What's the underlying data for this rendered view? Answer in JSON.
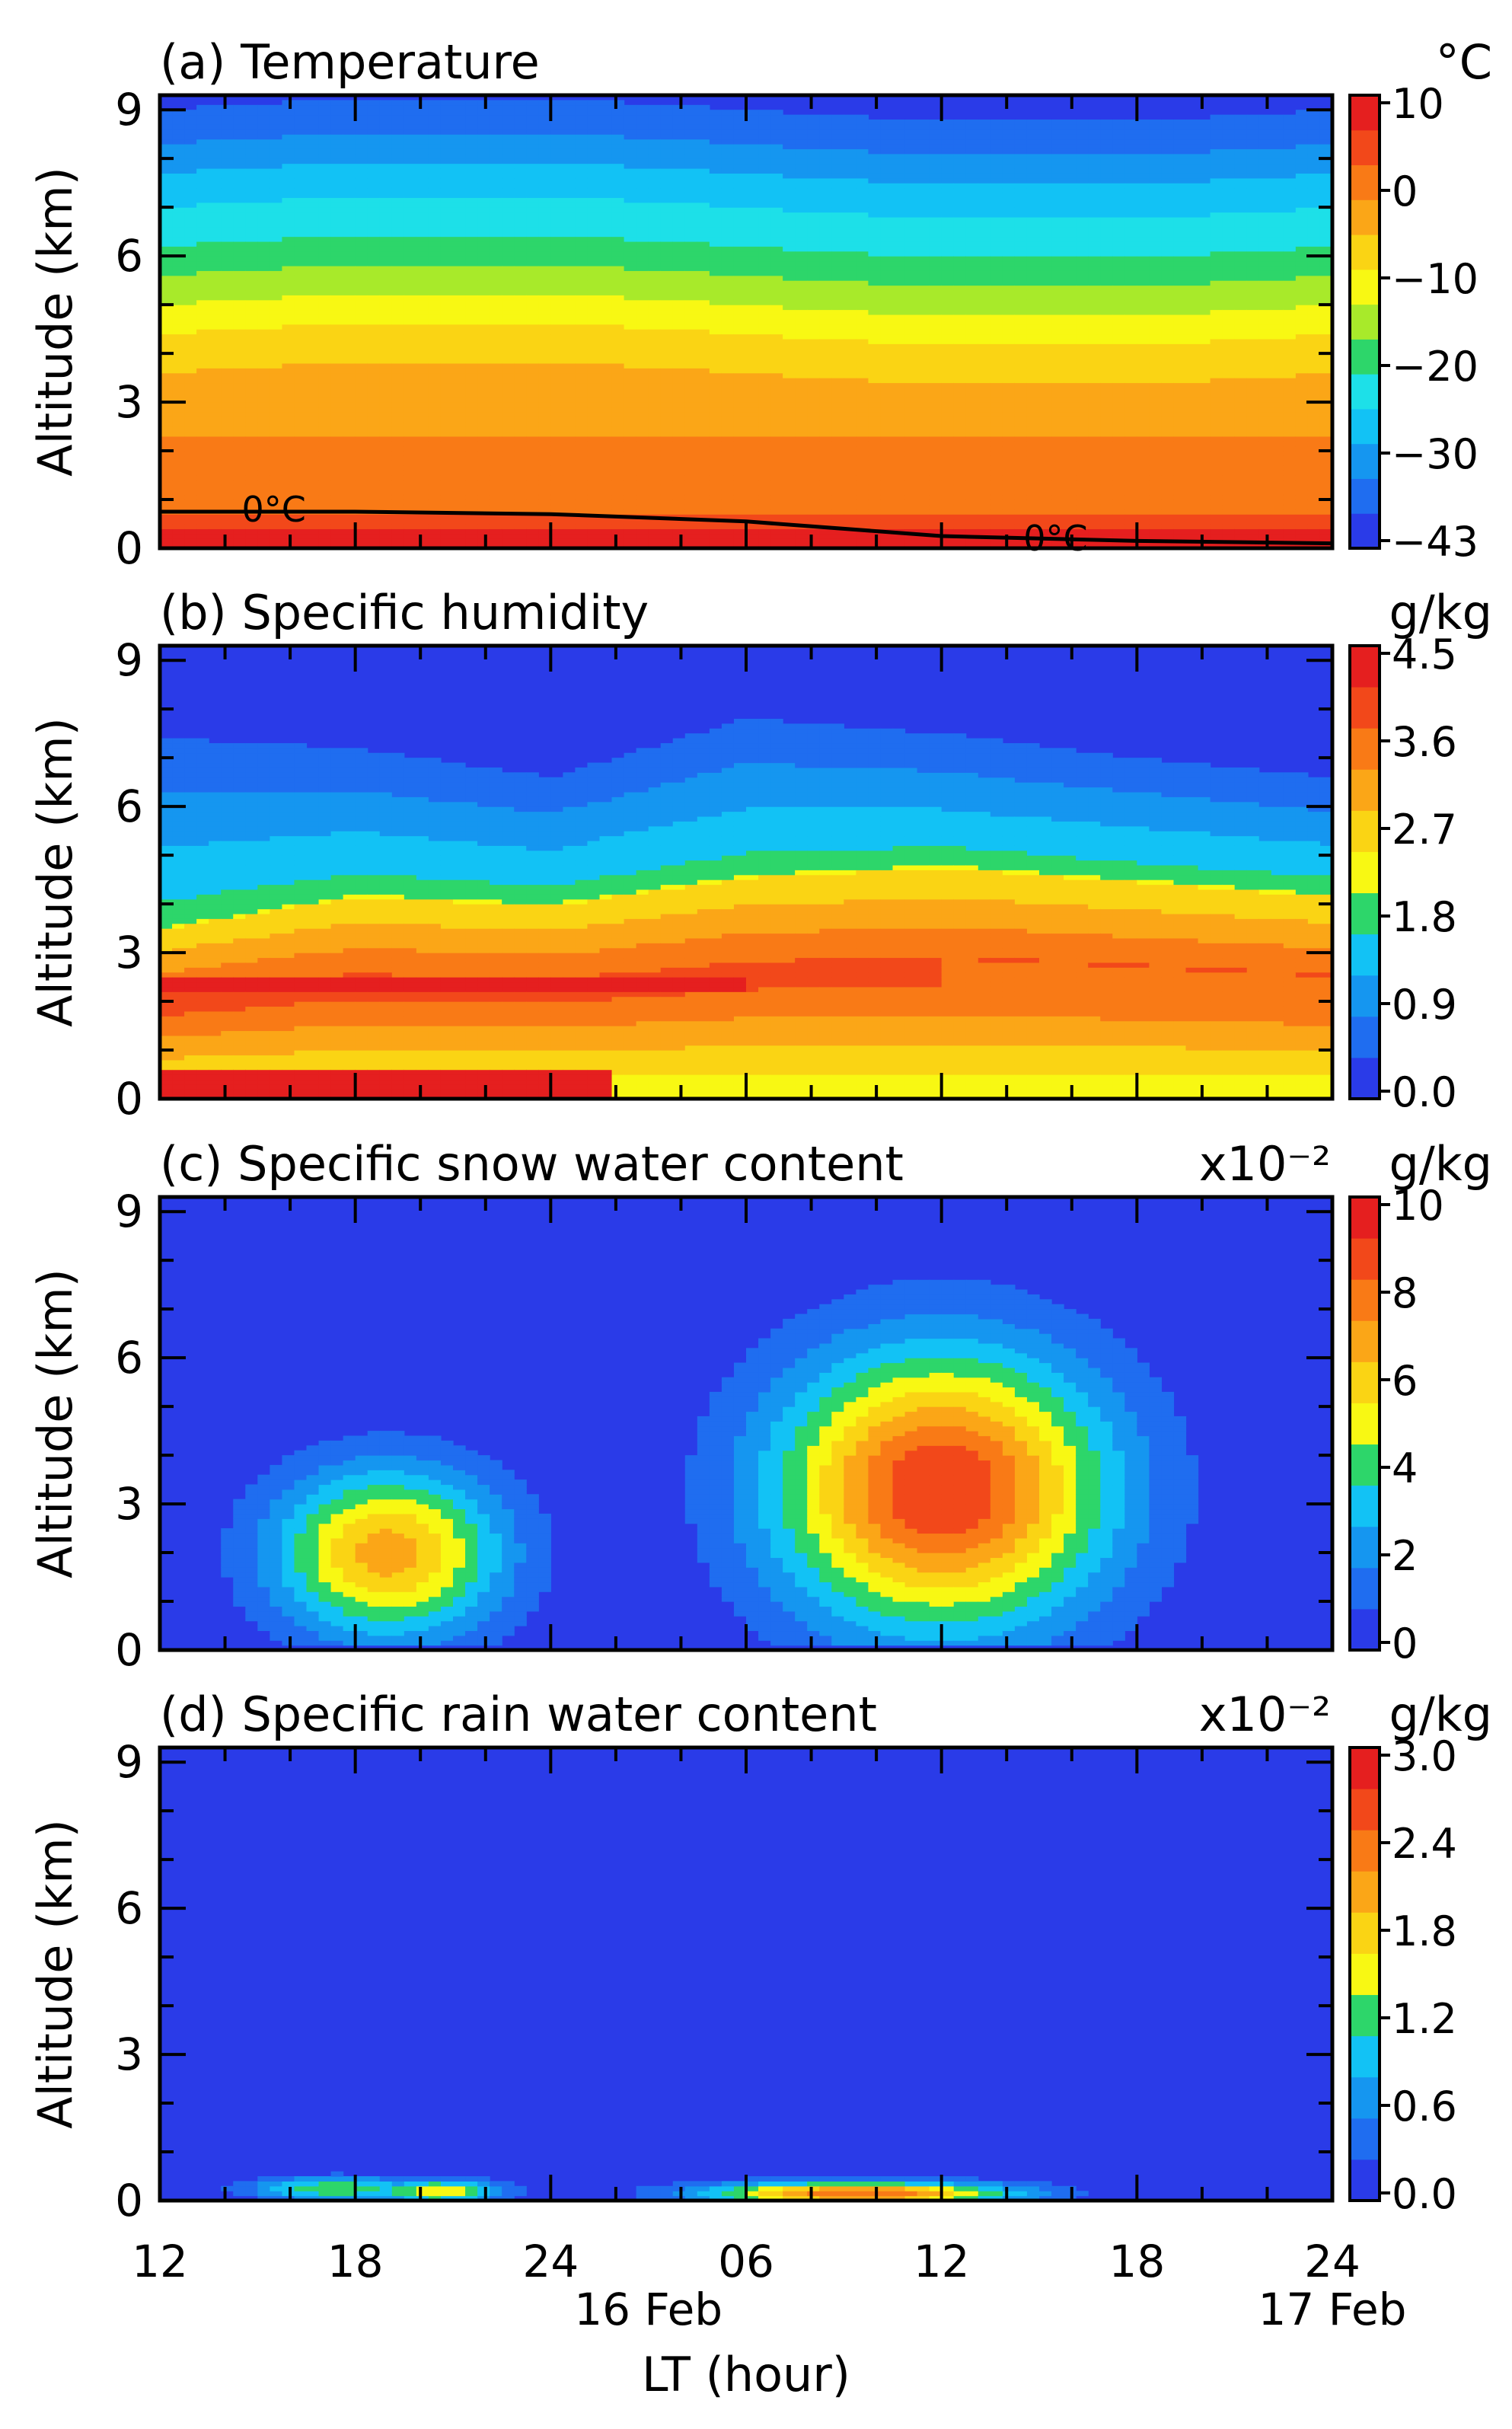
{
  "chart_data": [
    {
      "type": "heatmap",
      "title": "(a) Temperature",
      "ylabel": "Altitude (km)",
      "ylim": [
        0,
        9.3
      ],
      "yticks": [
        "0",
        "3",
        "6",
        "9"
      ],
      "xlim": [
        12,
        48
      ],
      "xticks": [
        "12",
        "18",
        "24",
        "06",
        "12",
        "18",
        "24"
      ],
      "colorbar": {
        "unit": "°C",
        "exponent": "",
        "labels": [
          "10",
          "0",
          "−10",
          "−20",
          "−30",
          "−43"
        ],
        "range": [
          -43,
          10
        ]
      },
      "colors": [
        "#2a3be8",
        "#1f6df0",
        "#1596f0",
        "#12c2f5",
        "#1de0e8",
        "#2dd66a",
        "#a8ea2a",
        "#f8f813",
        "#fad414",
        "#fba617",
        "#f97a16",
        "#f2481a",
        "#e51f1f"
      ],
      "x": [
        12,
        18,
        24,
        30,
        36,
        42,
        48
      ],
      "levels_km": [
        0.0,
        0.4,
        0.7,
        2.3,
        3.6,
        4.4,
        5.0,
        5.6,
        6.2,
        7.0,
        7.7,
        8.3,
        9.0
      ],
      "freezing_level_km": [
        0.75,
        0.75,
        0.7,
        0.55,
        0.25,
        0.15,
        0.1
      ],
      "isoline_labels": [
        "0°C",
        "0°C"
      ]
    },
    {
      "type": "heatmap",
      "title": "(b) Specific humidity",
      "ylabel": "Altitude (km)",
      "ylim": [
        0,
        9.3
      ],
      "yticks": [
        "0",
        "3",
        "6",
        "9"
      ],
      "xlim": [
        12,
        48
      ],
      "xticks": [
        "12",
        "18",
        "24",
        "06",
        "12",
        "18",
        "24"
      ],
      "colorbar": {
        "unit": "g/kg",
        "exponent": "",
        "labels": [
          "4.5",
          "3.6",
          "2.7",
          "1.8",
          "0.9",
          "0.0"
        ],
        "range": [
          0,
          4.5
        ]
      },
      "colors": [
        "#2a3be8",
        "#1f6df0",
        "#1596f0",
        "#12c2f5",
        "#2dd66a",
        "#f8f813",
        "#fad414",
        "#fba617",
        "#f97a16",
        "#f2481a",
        "#e51f1f"
      ],
      "x": [
        12,
        18,
        24,
        30,
        36,
        42,
        48
      ],
      "low_humidity_top_km": [
        3.5,
        4.2,
        4.0,
        4.6,
        4.8,
        4.5,
        4.2
      ],
      "moist_layer_top_km": [
        7.4,
        7.2,
        6.6,
        7.8,
        7.5,
        7.0,
        6.6
      ],
      "max_core_km": [
        2.2,
        2.5
      ]
    },
    {
      "type": "heatmap",
      "title": "(c) Specific snow water content",
      "ylabel": "Altitude (km)",
      "ylim": [
        0,
        9.3
      ],
      "yticks": [
        "0",
        "3",
        "6",
        "9"
      ],
      "xlim": [
        12,
        48
      ],
      "xticks": [
        "12",
        "18",
        "24",
        "06",
        "12",
        "18",
        "24"
      ],
      "colorbar": {
        "unit": "g/kg",
        "exponent": "x10⁻²",
        "labels": [
          "10",
          "8",
          "6",
          "4",
          "2",
          "0"
        ],
        "range": [
          0,
          10
        ]
      },
      "colors": [
        "#2a3be8",
        "#1f6df0",
        "#1596f0",
        "#12c2f5",
        "#2dd66a",
        "#f8f813",
        "#fad414",
        "#fba617",
        "#f97a16",
        "#f2481a",
        "#e51f1f"
      ],
      "cells": [
        {
          "x_center": 19,
          "z_center_km": 2.0,
          "x_halfwidth_h": 4.5,
          "z_halfheight_km": 2.2,
          "peak": 7.5
        },
        {
          "x_center": 36,
          "z_center_km": 3.3,
          "x_halfwidth_h": 6.5,
          "z_halfheight_km": 3.6,
          "peak": 10.0
        }
      ]
    },
    {
      "type": "heatmap",
      "title": "(d) Specific rain water content",
      "ylabel": "Altitude (km)",
      "ylim": [
        0,
        9.3
      ],
      "yticks": [
        "0",
        "3",
        "6",
        "9"
      ],
      "xlim": [
        12,
        48
      ],
      "xticks": [
        "12",
        "18",
        "24",
        "06",
        "12",
        "18",
        "24"
      ],
      "xlabel": "LT (hour)",
      "date_labels": [
        "16 Feb",
        "17 Feb"
      ],
      "colorbar": {
        "unit": "g/kg",
        "exponent": "x10⁻²",
        "labels": [
          "3.0",
          "2.4",
          "1.8",
          "1.2",
          "0.6",
          "0.0"
        ],
        "range": [
          0,
          3.0
        ]
      },
      "colors": [
        "#2a3be8",
        "#1f6df0",
        "#1596f0",
        "#12c2f5",
        "#2dd66a",
        "#f8f813",
        "#fad414",
        "#fba617",
        "#f97a16",
        "#f2481a",
        "#e51f1f"
      ],
      "cells": [
        {
          "x_center": 17.5,
          "z_center_km": 0.25,
          "x_halfwidth_h": 3.5,
          "peak": 1.5
        },
        {
          "x_center": 20.5,
          "z_center_km": 0.2,
          "x_halfwidth_h": 2.5,
          "peak": 1.8
        },
        {
          "x_center": 33.5,
          "z_center_km": 0.15,
          "x_halfwidth_h": 6.0,
          "peak": 2.7
        }
      ]
    }
  ]
}
